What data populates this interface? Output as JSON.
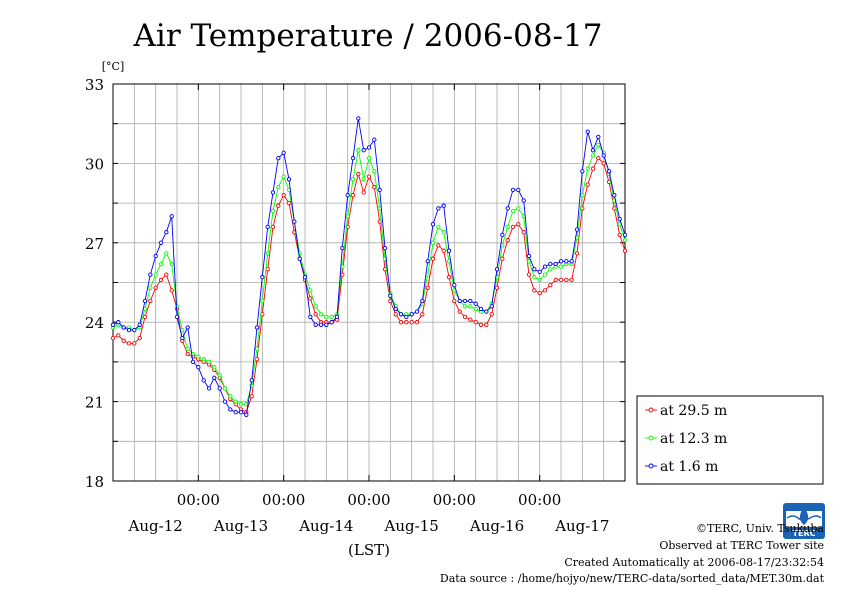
{
  "title": "Air Temperature / 2006-08-17",
  "unit": "[°C]",
  "xlabel": "(LST)",
  "footer": {
    "copyright": "©TERC, Univ. Tsukuba",
    "observed": "Observed at TERC Tower site",
    "created": "Created Automatically at 2006-08-17/23:32:54",
    "source": "Data source : /home/hojyo/new/TERC-data/sorted_data/MET.30m.dat"
  },
  "logo_text": "TERC",
  "colors": {
    "s1": "#ff0000",
    "s2": "#00ff00",
    "s3": "#0000ff",
    "grid": "#aaaaaa"
  },
  "chart_data": {
    "type": "line",
    "title": "Air Temperature / 2006-08-17",
    "ylabel": "[°C]",
    "xlabel": "(LST)",
    "ylim": [
      18,
      33
    ],
    "xlim_days": [
      0,
      6
    ],
    "yticks": [
      "18",
      "21",
      "24",
      "27",
      "30",
      "33"
    ],
    "time_labels": [
      "00:00",
      "00:00",
      "00:00",
      "00:00",
      "00:00"
    ],
    "day_labels": [
      "Aug-12",
      "Aug-13",
      "Aug-14",
      "Aug-15",
      "Aug-16",
      "Aug-17"
    ],
    "grid": true,
    "legend_position": "right",
    "series": [
      {
        "name": "at 29.5 m",
        "color": "#ff0000",
        "points": [
          [
            0,
            23.4
          ],
          [
            1.5,
            23.5
          ],
          [
            3,
            23.3
          ],
          [
            4.5,
            23.2
          ],
          [
            6,
            23.2
          ],
          [
            7.5,
            23.4
          ],
          [
            9,
            24.2
          ],
          [
            10.5,
            24.8
          ],
          [
            12,
            25.3
          ],
          [
            13.5,
            25.6
          ],
          [
            15,
            25.8
          ],
          [
            16.5,
            25.2
          ],
          [
            18,
            24.5
          ],
          [
            19.5,
            23.3
          ],
          [
            21,
            22.8
          ],
          [
            22.5,
            22.7
          ],
          [
            24,
            22.6
          ],
          [
            25.5,
            22.5
          ],
          [
            27,
            22.4
          ],
          [
            28.5,
            22.2
          ],
          [
            30,
            21.9
          ],
          [
            31.5,
            21.5
          ],
          [
            33,
            21.1
          ],
          [
            34.5,
            20.9
          ],
          [
            36,
            20.7
          ],
          [
            37.5,
            20.6
          ],
          [
            39,
            21.2
          ],
          [
            40.5,
            22.6
          ],
          [
            42,
            24.3
          ],
          [
            43.5,
            26.0
          ],
          [
            45,
            27.6
          ],
          [
            46.5,
            28.4
          ],
          [
            48,
            28.8
          ],
          [
            49.5,
            28.5
          ],
          [
            51,
            27.4
          ],
          [
            52.5,
            26.4
          ],
          [
            54,
            25.6
          ],
          [
            55.5,
            24.9
          ],
          [
            57,
            24.3
          ],
          [
            58.5,
            24.0
          ],
          [
            60,
            24.0
          ],
          [
            61.5,
            24.0
          ],
          [
            63,
            24.1
          ],
          [
            64.5,
            25.8
          ],
          [
            66,
            27.6
          ],
          [
            67.5,
            28.8
          ],
          [
            69,
            29.6
          ],
          [
            70.5,
            28.9
          ],
          [
            72,
            29.5
          ],
          [
            73.5,
            29.1
          ],
          [
            75,
            27.8
          ],
          [
            76.5,
            26.0
          ],
          [
            78,
            24.8
          ],
          [
            79.5,
            24.3
          ],
          [
            81,
            24.0
          ],
          [
            82.5,
            24.0
          ],
          [
            84,
            24.0
          ],
          [
            85.5,
            24.0
          ],
          [
            87,
            24.3
          ],
          [
            88.5,
            25.3
          ],
          [
            90,
            26.4
          ],
          [
            91.5,
            26.9
          ],
          [
            93,
            26.7
          ],
          [
            94.5,
            25.7
          ],
          [
            96,
            24.8
          ],
          [
            97.5,
            24.4
          ],
          [
            99,
            24.2
          ],
          [
            100.5,
            24.1
          ],
          [
            102,
            24.0
          ],
          [
            103.5,
            23.9
          ],
          [
            105,
            23.9
          ],
          [
            106.5,
            24.3
          ],
          [
            108,
            25.3
          ],
          [
            109.5,
            26.4
          ],
          [
            111,
            27.1
          ],
          [
            112.5,
            27.6
          ],
          [
            114,
            27.7
          ],
          [
            115.5,
            27.4
          ],
          [
            117,
            25.8
          ],
          [
            118.5,
            25.2
          ],
          [
            120,
            25.1
          ],
          [
            121.5,
            25.2
          ],
          [
            123,
            25.4
          ],
          [
            124.5,
            25.6
          ],
          [
            126,
            25.6
          ],
          [
            127.5,
            25.6
          ],
          [
            129,
            25.6
          ],
          [
            130.5,
            26.6
          ],
          [
            132,
            28.3
          ],
          [
            133.5,
            29.2
          ],
          [
            135,
            29.8
          ],
          [
            136.5,
            30.2
          ],
          [
            138,
            30.0
          ],
          [
            139.5,
            29.3
          ],
          [
            141,
            28.3
          ],
          [
            142.5,
            27.3
          ],
          [
            144,
            26.7
          ]
        ]
      },
      {
        "name": "at 12.3 m",
        "color": "#00ff00",
        "points": [
          [
            0,
            23.8
          ],
          [
            1.5,
            23.9
          ],
          [
            3,
            23.8
          ],
          [
            4.5,
            23.8
          ],
          [
            6,
            23.7
          ],
          [
            7.5,
            23.8
          ],
          [
            9,
            24.5
          ],
          [
            10.5,
            25.3
          ],
          [
            12,
            25.8
          ],
          [
            13.5,
            26.2
          ],
          [
            15,
            26.6
          ],
          [
            16.5,
            26.2
          ],
          [
            18,
            24.6
          ],
          [
            19.5,
            23.7
          ],
          [
            21,
            23.0
          ],
          [
            22.5,
            22.8
          ],
          [
            24,
            22.7
          ],
          [
            25.5,
            22.6
          ],
          [
            27,
            22.5
          ],
          [
            28.5,
            22.3
          ],
          [
            30,
            22.0
          ],
          [
            31.5,
            21.5
          ],
          [
            33,
            21.2
          ],
          [
            34.5,
            21.0
          ],
          [
            36,
            20.9
          ],
          [
            37.5,
            20.9
          ],
          [
            39,
            21.6
          ],
          [
            40.5,
            23.0
          ],
          [
            42,
            24.8
          ],
          [
            43.5,
            26.6
          ],
          [
            45,
            28.2
          ],
          [
            46.5,
            29.1
          ],
          [
            48,
            29.5
          ],
          [
            49.5,
            29.0
          ],
          [
            51,
            27.8
          ],
          [
            52.5,
            26.6
          ],
          [
            54,
            25.8
          ],
          [
            55.5,
            25.2
          ],
          [
            57,
            24.6
          ],
          [
            58.5,
            24.3
          ],
          [
            60,
            24.2
          ],
          [
            61.5,
            24.2
          ],
          [
            63,
            24.3
          ],
          [
            64.5,
            26.1
          ],
          [
            66,
            28.0
          ],
          [
            67.5,
            29.4
          ],
          [
            69,
            30.5
          ],
          [
            70.5,
            29.4
          ],
          [
            72,
            30.2
          ],
          [
            73.5,
            29.7
          ],
          [
            75,
            28.3
          ],
          [
            76.5,
            26.4
          ],
          [
            78,
            25.1
          ],
          [
            79.5,
            24.6
          ],
          [
            81,
            24.3
          ],
          [
            82.5,
            24.3
          ],
          [
            84,
            24.3
          ],
          [
            85.5,
            24.4
          ],
          [
            87,
            24.7
          ],
          [
            88.5,
            25.8
          ],
          [
            90,
            27.0
          ],
          [
            91.5,
            27.6
          ],
          [
            93,
            27.4
          ],
          [
            94.5,
            26.3
          ],
          [
            96,
            25.2
          ],
          [
            97.5,
            24.8
          ],
          [
            99,
            24.6
          ],
          [
            100.5,
            24.6
          ],
          [
            102,
            24.5
          ],
          [
            103.5,
            24.4
          ],
          [
            105,
            24.4
          ],
          [
            106.5,
            24.7
          ],
          [
            108,
            25.7
          ],
          [
            109.5,
            26.9
          ],
          [
            111,
            27.6
          ],
          [
            112.5,
            28.2
          ],
          [
            114,
            28.3
          ],
          [
            115.5,
            28.0
          ],
          [
            117,
            26.3
          ],
          [
            118.5,
            25.7
          ],
          [
            120,
            25.6
          ],
          [
            121.5,
            25.8
          ],
          [
            123,
            26.0
          ],
          [
            124.5,
            26.1
          ],
          [
            126,
            26.1
          ],
          [
            127.5,
            26.2
          ],
          [
            129,
            26.2
          ],
          [
            130.5,
            27.2
          ],
          [
            132,
            28.8
          ],
          [
            133.5,
            29.8
          ],
          [
            135,
            30.3
          ],
          [
            136.5,
            30.7
          ],
          [
            138,
            30.4
          ],
          [
            139.5,
            29.6
          ],
          [
            141,
            28.6
          ],
          [
            142.5,
            27.7
          ],
          [
            144,
            27.1
          ]
        ]
      },
      {
        "name": "at 1.6 m",
        "color": "#0000ff",
        "points": [
          [
            0,
            23.9
          ],
          [
            1.5,
            24.0
          ],
          [
            3,
            23.8
          ],
          [
            4.5,
            23.7
          ],
          [
            6,
            23.7
          ],
          [
            7.5,
            23.9
          ],
          [
            9,
            24.8
          ],
          [
            10.5,
            25.8
          ],
          [
            12,
            26.5
          ],
          [
            13.5,
            27.0
          ],
          [
            15,
            27.4
          ],
          [
            16.5,
            28.0
          ],
          [
            18,
            24.2
          ],
          [
            19.5,
            23.4
          ],
          [
            21,
            23.8
          ],
          [
            22.5,
            22.5
          ],
          [
            24,
            22.3
          ],
          [
            25.5,
            21.8
          ],
          [
            27,
            21.5
          ],
          [
            28.5,
            21.9
          ],
          [
            30,
            21.5
          ],
          [
            31.5,
            21.0
          ],
          [
            33,
            20.7
          ],
          [
            34.5,
            20.6
          ],
          [
            36,
            20.6
          ],
          [
            37.5,
            20.5
          ],
          [
            39,
            21.8
          ],
          [
            40.5,
            23.8
          ],
          [
            42,
            25.7
          ],
          [
            43.5,
            27.6
          ],
          [
            45,
            28.9
          ],
          [
            46.5,
            30.2
          ],
          [
            48,
            30.4
          ],
          [
            49.5,
            29.4
          ],
          [
            51,
            27.8
          ],
          [
            52.5,
            26.4
          ],
          [
            54,
            25.7
          ],
          [
            55.5,
            24.2
          ],
          [
            57,
            23.9
          ],
          [
            58.5,
            23.9
          ],
          [
            60,
            23.9
          ],
          [
            61.5,
            24.0
          ],
          [
            63,
            24.2
          ],
          [
            64.5,
            26.8
          ],
          [
            66,
            28.8
          ],
          [
            67.5,
            30.2
          ],
          [
            69,
            31.7
          ],
          [
            70.5,
            30.5
          ],
          [
            72,
            30.6
          ],
          [
            73.5,
            30.9
          ],
          [
            75,
            29.0
          ],
          [
            76.5,
            26.8
          ],
          [
            78,
            25.0
          ],
          [
            79.5,
            24.5
          ],
          [
            81,
            24.3
          ],
          [
            82.5,
            24.2
          ],
          [
            84,
            24.3
          ],
          [
            85.5,
            24.4
          ],
          [
            87,
            24.8
          ],
          [
            88.5,
            26.3
          ],
          [
            90,
            27.7
          ],
          [
            91.5,
            28.3
          ],
          [
            93,
            28.4
          ],
          [
            94.5,
            26.7
          ],
          [
            96,
            25.4
          ],
          [
            97.5,
            24.8
          ],
          [
            99,
            24.8
          ],
          [
            100.5,
            24.8
          ],
          [
            102,
            24.7
          ],
          [
            103.5,
            24.5
          ],
          [
            105,
            24.4
          ],
          [
            106.5,
            24.6
          ],
          [
            108,
            26.0
          ],
          [
            109.5,
            27.3
          ],
          [
            111,
            28.3
          ],
          [
            112.5,
            29.0
          ],
          [
            114,
            29.0
          ],
          [
            115.5,
            28.6
          ],
          [
            117,
            26.5
          ],
          [
            118.5,
            26.0
          ],
          [
            120,
            25.9
          ],
          [
            121.5,
            26.1
          ],
          [
            123,
            26.2
          ],
          [
            124.5,
            26.2
          ],
          [
            126,
            26.3
          ],
          [
            127.5,
            26.3
          ],
          [
            129,
            26.3
          ],
          [
            130.5,
            27.5
          ],
          [
            132,
            29.7
          ],
          [
            133.5,
            31.2
          ],
          [
            135,
            30.5
          ],
          [
            136.5,
            31.0
          ],
          [
            138,
            30.3
          ],
          [
            139.5,
            29.7
          ],
          [
            141,
            28.8
          ],
          [
            142.5,
            27.9
          ],
          [
            144,
            27.3
          ]
        ]
      }
    ]
  }
}
